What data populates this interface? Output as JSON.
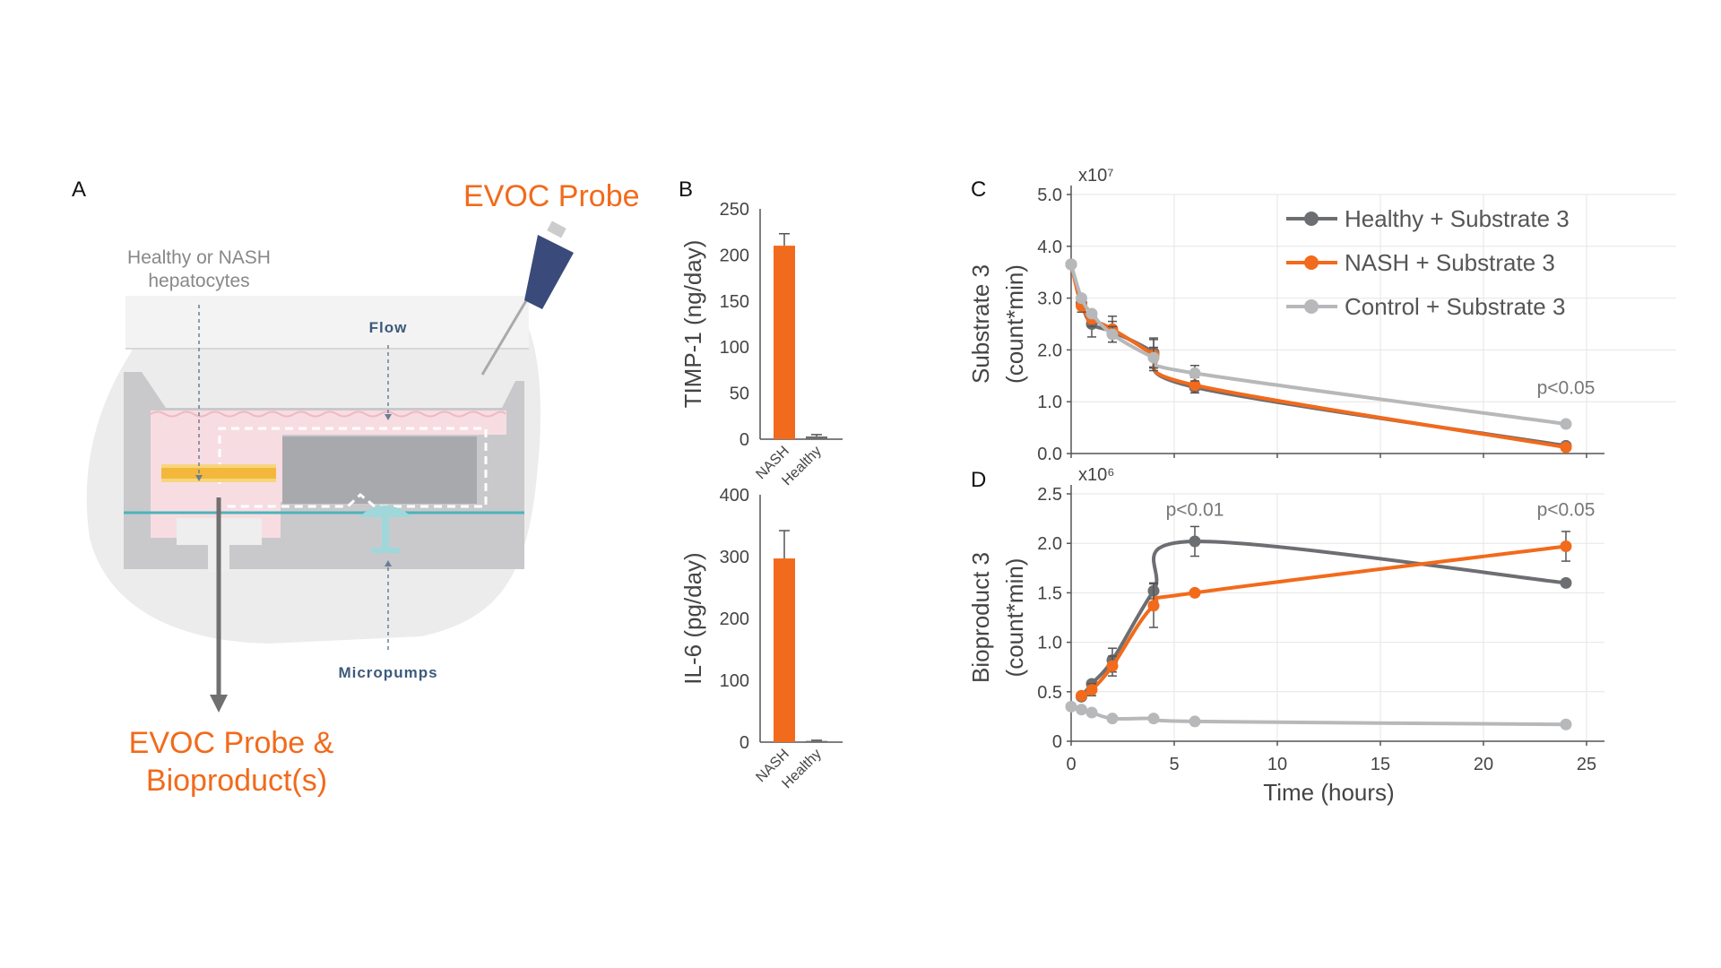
{
  "panel_labels": {
    "a": "A",
    "b": "B",
    "c": "C",
    "d": "D"
  },
  "diagram": {
    "probe_title": "EVOC Probe",
    "hepatocytes_line1": "Healthy or NASH",
    "hepatocytes_line2": "hepatocytes",
    "flow_label": "Flow",
    "micropumps_label": "Micropumps",
    "output_line1": "EVOC Probe &",
    "output_line2": "Bioproduct(s)"
  },
  "colors": {
    "healthy": "#6d6e71",
    "nash": "#f26a1b",
    "control": "#b7b8ba",
    "axis": "#555555",
    "grid": "#e6e6e6"
  },
  "chart_data": [
    {
      "id": "timp1",
      "type": "bar",
      "title": "",
      "categories": [
        "NASH",
        "Healthy"
      ],
      "values": [
        210,
        3
      ],
      "errors": [
        13,
        2
      ],
      "xlabel": "",
      "ylabel": "TIMP-1 (ng/day)",
      "ylim": [
        0,
        250
      ],
      "yticks": [
        "0",
        "50",
        "100",
        "150",
        "200",
        "250"
      ]
    },
    {
      "id": "il6",
      "type": "bar",
      "title": "",
      "categories": [
        "NASH",
        "Healthy"
      ],
      "values": [
        297,
        2
      ],
      "errors": [
        45,
        1
      ],
      "xlabel": "",
      "ylabel": "IL-6 (pg/day)",
      "ylim": [
        0,
        400
      ],
      "yticks": [
        "0",
        "100",
        "200",
        "300",
        "400"
      ]
    },
    {
      "id": "substrate",
      "type": "line",
      "multiplier": "x10⁷",
      "ylabel_line1": "Substrate 3",
      "ylabel_line2": "(count*min)",
      "xlabel": "",
      "xlim": [
        0,
        25
      ],
      "ylim": [
        0,
        5
      ],
      "yticks": [
        "0.0",
        "1.0",
        "2.0",
        "3.0",
        "4.0",
        "5.0"
      ],
      "grid": true,
      "x": [
        0,
        0.5,
        1,
        2,
        4,
        6,
        24
      ],
      "series": [
        {
          "name": "Healthy + Substrate 3",
          "key": "healthy",
          "values": [
            3.65,
            2.9,
            2.5,
            2.35,
            1.95,
            1.28,
            0.15
          ],
          "errors": [
            0.1,
            0.1,
            0.25,
            0.2,
            0.28,
            0.08,
            0.05
          ]
        },
        {
          "name": "NASH + Substrate 3",
          "key": "nash",
          "values": [
            3.65,
            2.85,
            2.6,
            2.4,
            1.9,
            1.32,
            0.12
          ],
          "errors": [
            0.1,
            0.12,
            0.15,
            0.25,
            0.3,
            0.15,
            0.05
          ]
        },
        {
          "name": "Control + Substrate 3",
          "key": "control",
          "values": [
            3.65,
            3.0,
            2.7,
            2.3,
            1.85,
            1.55,
            0.57
          ],
          "errors": [
            0.1,
            0.1,
            0.1,
            0.15,
            0.2,
            0.15,
            0.05
          ]
        }
      ],
      "annotations": [
        {
          "text": "p<0.05",
          "x": 24,
          "y": 1.15
        }
      ],
      "legend": {
        "placement": "top-right"
      }
    },
    {
      "id": "bioproduct",
      "type": "line",
      "multiplier": "x10⁶",
      "ylabel_line1": "Bioproduct 3",
      "ylabel_line2": "(count*min)",
      "xlabel": "Time (hours)",
      "xlim": [
        0,
        25
      ],
      "ylim": [
        0,
        2.5
      ],
      "xticks": [
        "0",
        "5",
        "10",
        "15",
        "20",
        "25"
      ],
      "yticks": [
        "0",
        "0.5",
        "1.0",
        "1.5",
        "2.0",
        "2.5"
      ],
      "grid": true,
      "x": [
        0.5,
        1,
        2,
        4,
        6,
        24
      ],
      "series": [
        {
          "name": "Healthy + Substrate 3",
          "key": "healthy",
          "values": [
            0.45,
            0.58,
            0.82,
            1.52,
            2.02,
            1.6
          ],
          "errors": [
            0.03,
            0.05,
            0.12,
            0.08,
            0.15,
            0.03
          ]
        },
        {
          "name": "NASH + Substrate 3",
          "key": "nash",
          "values": [
            0.46,
            0.52,
            0.76,
            1.37,
            1.5,
            1.97
          ],
          "errors": [
            0.03,
            0.06,
            0.1,
            0.22,
            0.04,
            0.15
          ]
        },
        {
          "name": "Control + Substrate 3",
          "key": "control",
          "x": [
            0,
            0.5,
            1,
            2,
            4,
            6,
            24
          ],
          "values": [
            0.35,
            0.32,
            0.29,
            0.23,
            0.23,
            0.2,
            0.17
          ],
          "errors": [
            0.02,
            0.02,
            0.02,
            0.02,
            0.02,
            0.02,
            0.02
          ]
        }
      ],
      "annotations": [
        {
          "text": "p<0.01",
          "x": 6,
          "y": 2.28
        },
        {
          "text": "p<0.05",
          "x": 24,
          "y": 2.28
        }
      ]
    }
  ]
}
